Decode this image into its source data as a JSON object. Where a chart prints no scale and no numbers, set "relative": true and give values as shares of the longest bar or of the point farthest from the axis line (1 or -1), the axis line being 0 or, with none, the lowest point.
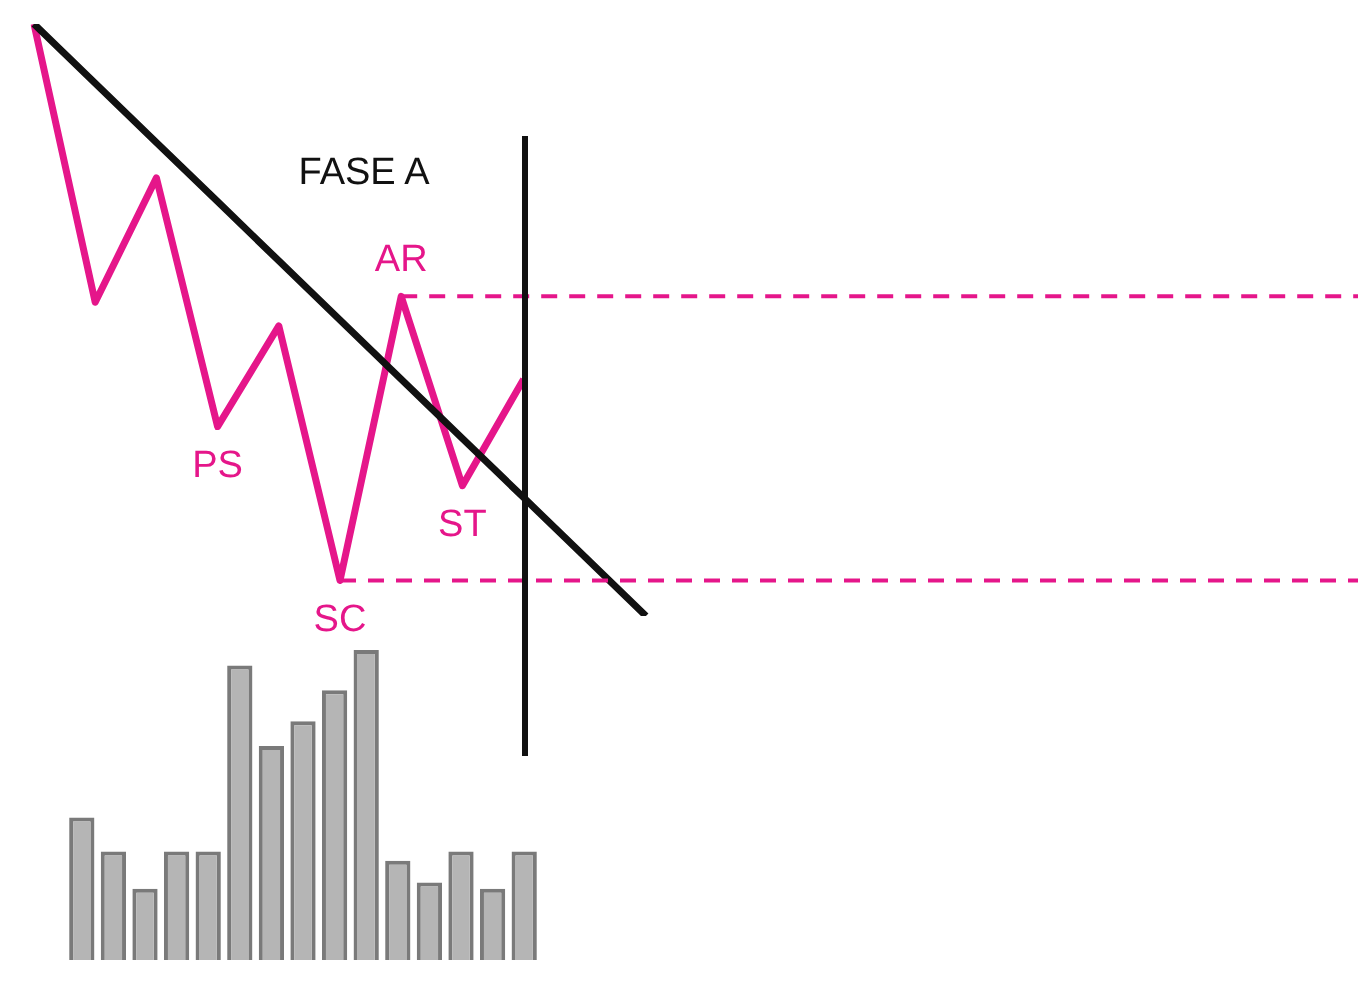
{
  "chart_data": [
    {
      "type": "line",
      "relative": true,
      "categories": [
        null,
        null,
        null,
        null,
        null,
        null,
        null,
        null,
        null,
        null,
        null
      ],
      "series": [
        {
          "color": "#e5168a",
          "values": [
            1,
            0.53,
            0.74,
            0.32,
            0.49,
            0.06,
            0.54,
            0.22,
            0.4,
            null,
            null
          ]
        },
        {
          "type": "line",
          "color": "#111111",
          "values": [
            1,
            0.9,
            0.8,
            0.7,
            0.6,
            0.5,
            0.4,
            0.3,
            0.2,
            0.1,
            0
          ]
        }
      ],
      "ref_lines": [
        {
          "axis": "y",
          "value": 0.54,
          "color": "#e5168a",
          "line_style": "dashed"
        },
        {
          "axis": "y",
          "value": 0.06,
          "color": "#e5168a",
          "line_style": "dashed"
        }
      ],
      "annotations": [
        "FASE A",
        {
          "text": "PS",
          "y": 0.32
        },
        {
          "text": "SC",
          "y": 0.06
        },
        {
          "text": "AR",
          "y": 0.54
        },
        {
          "text": "ST",
          "y": 0.22
        }
      ]
    },
    {
      "type": "bar",
      "relative": true,
      "categories": [
        null,
        null,
        null,
        null,
        null,
        null,
        null,
        null,
        null,
        null,
        null,
        null,
        null,
        null,
        null
      ],
      "color": "#b5b5b5",
      "values": [
        0.46,
        0.35,
        0.23,
        0.35,
        0.35,
        0.95,
        0.69,
        0.77,
        0.87,
        1,
        0.32,
        0.25,
        0.35,
        0.23,
        0.35
      ]
    }
  ]
}
